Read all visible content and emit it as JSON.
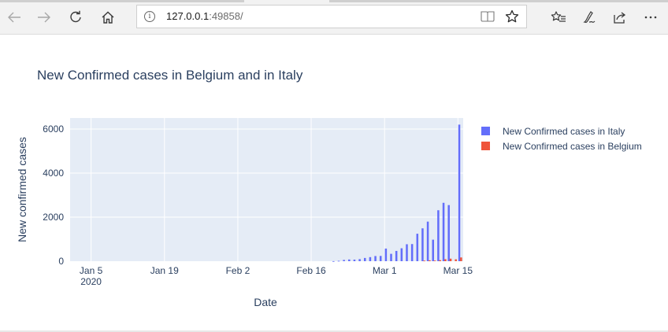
{
  "browser": {
    "url_host": "127.0.0.1",
    "url_port": ":49858/",
    "icons": {
      "back": "back-arrow-icon",
      "forward": "forward-arrow-icon",
      "refresh": "refresh-icon",
      "home": "home-icon",
      "reading_view": "reading-view-icon",
      "favorite": "favorite-star-icon",
      "favorites_hub": "favorites-hub-icon",
      "notes": "web-note-icon",
      "share": "share-icon",
      "more": "more-icon"
    }
  },
  "chart_data": {
    "type": "bar",
    "title": "New Confirmed cases in Belgium and in Italy",
    "xlabel": "Date",
    "ylabel": "New confirmed cases",
    "x_tick_labels": [
      "Jan 5",
      "Jan 19",
      "Feb 2",
      "Feb 16",
      "Mar 1",
      "Mar 15"
    ],
    "x_tick_year": "2020",
    "y_ticks": [
      0,
      2000,
      4000,
      6000
    ],
    "ylim": [
      0,
      6500
    ],
    "xlim": [
      "2020-01-01",
      "2020-03-16"
    ],
    "grid": true,
    "legend_position": "right",
    "colors": {
      "italy": "#636efa",
      "belgium": "#ef553b",
      "plot_bg": "#e5ecf6"
    },
    "series": [
      {
        "name": "New Confirmed cases in Italy",
        "x": [
          "2020-02-20",
          "2020-02-21",
          "2020-02-22",
          "2020-02-23",
          "2020-02-24",
          "2020-02-25",
          "2020-02-26",
          "2020-02-27",
          "2020-02-28",
          "2020-02-29",
          "2020-03-01",
          "2020-03-02",
          "2020-03-03",
          "2020-03-04",
          "2020-03-05",
          "2020-03-06",
          "2020-03-07",
          "2020-03-08",
          "2020-03-09",
          "2020-03-10",
          "2020-03-11",
          "2020-03-12",
          "2020-03-13",
          "2020-03-14",
          "2020-03-15"
        ],
        "values": [
          3,
          17,
          58,
          78,
          72,
          94,
          147,
          185,
          234,
          239,
          573,
          335,
          466,
          587,
          769,
          778,
          1247,
          1492,
          1797,
          977,
          2313,
          2651,
          2547,
          0,
          6200
        ]
      },
      {
        "name": "New Confirmed cases in Belgium",
        "x": [
          "2020-03-08",
          "2020-03-09",
          "2020-03-10",
          "2020-03-11",
          "2020-03-12",
          "2020-03-13",
          "2020-03-14",
          "2020-03-15"
        ],
        "values": [
          25,
          40,
          28,
          47,
          90,
          115,
          85,
          170
        ]
      }
    ]
  }
}
